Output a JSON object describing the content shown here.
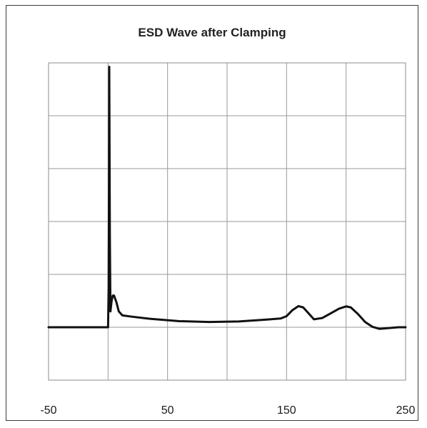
{
  "chart_data": {
    "type": "line",
    "title": "ESD Wave after Clamping",
    "xlabel": "",
    "ylabel": "",
    "xlim": [
      -50,
      250
    ],
    "ylim": [
      -0.2,
      1.0
    ],
    "x_ticks": [
      -50,
      0,
      50,
      100,
      150,
      200,
      250
    ],
    "x_tick_labels": [
      "-50",
      "",
      "50",
      "",
      "150",
      "",
      "250"
    ],
    "y_gridlines": [
      -0.2,
      0,
      0.2,
      0.4,
      0.6,
      0.8,
      1.0
    ],
    "grid": true,
    "legend": "none",
    "line_color": "#111111",
    "series": [
      {
        "x": [
          -50,
          -20,
          0,
          0.5,
          0.8,
          1.0,
          1.5,
          2.0,
          3.0,
          4.0,
          5.0,
          7.0,
          9.0,
          12.0,
          20,
          35,
          60,
          85,
          110,
          130,
          145,
          150,
          155,
          160,
          164,
          168,
          173,
          180,
          188,
          194,
          200,
          204,
          210,
          216,
          222,
          228,
          236,
          244,
          250
        ],
        "y": [
          0.0,
          0.0,
          0.0,
          0.15,
          0.55,
          0.985,
          0.35,
          0.06,
          0.1,
          0.12,
          0.12,
          0.095,
          0.06,
          0.045,
          0.04,
          0.032,
          0.023,
          0.02,
          0.022,
          0.028,
          0.033,
          0.042,
          0.065,
          0.08,
          0.075,
          0.055,
          0.03,
          0.035,
          0.055,
          0.07,
          0.079,
          0.075,
          0.05,
          0.02,
          0.002,
          -0.006,
          -0.003,
          0.0,
          0.0
        ]
      }
    ]
  }
}
